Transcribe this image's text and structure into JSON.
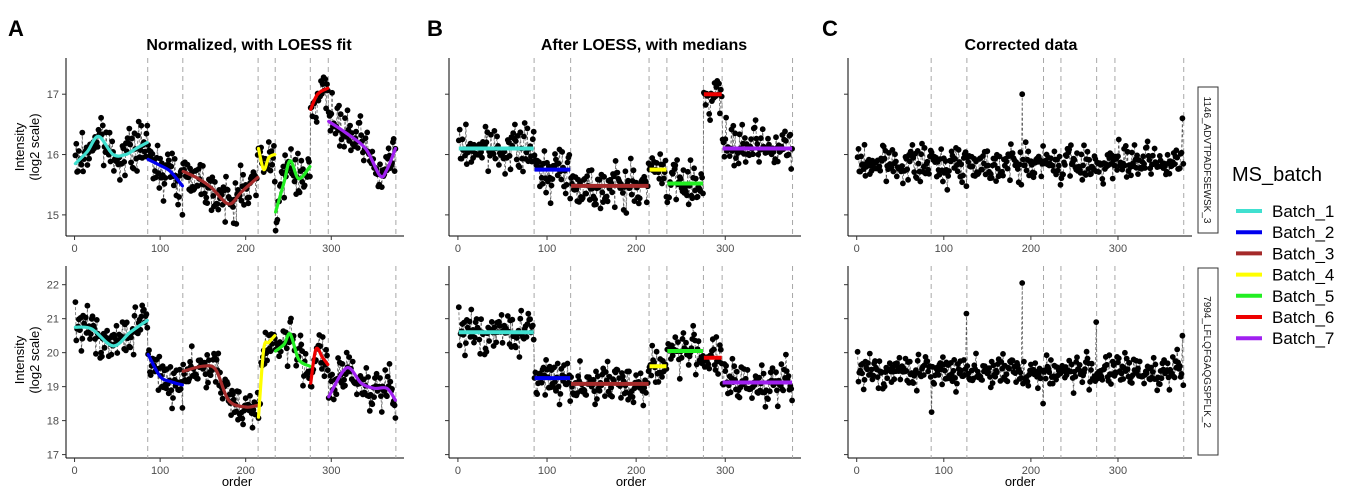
{
  "panel_letters": [
    "A",
    "B",
    "C"
  ],
  "panel_titles": [
    "Normalized, with LOESS fit",
    "After LOESS, with medians",
    "Corrected data"
  ],
  "row_strips": [
    "1146_ADVTPADFSEWSK_3",
    "7994_LFLQFGAQGSPFLK_2"
  ],
  "legend": {
    "title": "MS_batch",
    "items": [
      {
        "label": "Batch_1",
        "color": "#40E0D0"
      },
      {
        "label": "Batch_2",
        "color": "#0000EE"
      },
      {
        "label": "Batch_3",
        "color": "#A52A2A"
      },
      {
        "label": "Batch_4",
        "color": "#FFFF00"
      },
      {
        "label": "Batch_5",
        "color": "#22EE22"
      },
      {
        "label": "Batch_6",
        "color": "#EE0000"
      },
      {
        "label": "Batch_7",
        "color": "#A020F0"
      }
    ]
  },
  "chart_data": {
    "type": "scatter",
    "xlabel": "order",
    "ylabel_lines": [
      "Intensity",
      "(log2 scale)"
    ],
    "xlim": [
      -10,
      385
    ],
    "x_ticks": [
      0,
      100,
      200,
      300
    ],
    "batch_boundaries": [
      85,
      126,
      214,
      234,
      275,
      296,
      375
    ],
    "batches": [
      {
        "name": "Batch_1",
        "start": 1,
        "end": 85
      },
      {
        "name": "Batch_2",
        "start": 86,
        "end": 126
      },
      {
        "name": "Batch_3",
        "start": 127,
        "end": 214
      },
      {
        "name": "Batch_4",
        "start": 215,
        "end": 234
      },
      {
        "name": "Batch_5",
        "start": 235,
        "end": 275
      },
      {
        "name": "Batch_6",
        "start": 276,
        "end": 296
      },
      {
        "name": "Batch_7",
        "start": 297,
        "end": 375
      }
    ],
    "rows": [
      {
        "peptide": "1146_ADVTPADFSEWSK_3",
        "ylim": [
          14.65,
          17.6
        ],
        "y_ticks": [
          15,
          16,
          17
        ],
        "noise_sd": 0.26,
        "normalized_trend": {
          "Batch_1": [
            [
              1,
              15.85
            ],
            [
              15,
              16.05
            ],
            [
              28,
              16.3
            ],
            [
              45,
              16.0
            ],
            [
              60,
              16.0
            ],
            [
              72,
              16.1
            ],
            [
              85,
              16.2
            ]
          ],
          "Batch_2": [
            [
              86,
              15.92
            ],
            [
              100,
              15.82
            ],
            [
              112,
              15.72
            ],
            [
              126,
              15.48
            ]
          ],
          "Batch_3": [
            [
              127,
              15.72
            ],
            [
              145,
              15.6
            ],
            [
              160,
              15.45
            ],
            [
              180,
              15.18
            ],
            [
              195,
              15.38
            ],
            [
              214,
              15.62
            ]
          ],
          "Batch_4": [
            [
              215,
              16.1
            ],
            [
              221,
              15.75
            ],
            [
              227,
              15.95
            ],
            [
              234,
              16.0
            ]
          ],
          "Batch_5": [
            [
              235,
              15.05
            ],
            [
              245,
              15.55
            ],
            [
              252,
              15.9
            ],
            [
              262,
              15.6
            ],
            [
              275,
              15.8
            ]
          ],
          "Batch_6": [
            [
              276,
              16.75
            ],
            [
              284,
              17.0
            ],
            [
              296,
              17.1
            ]
          ],
          "Batch_7": [
            [
              297,
              16.55
            ],
            [
              318,
              16.35
            ],
            [
              340,
              16.1
            ],
            [
              357,
              15.65
            ],
            [
              365,
              15.75
            ],
            [
              375,
              16.1
            ]
          ]
        },
        "medians": {
          "Batch_1": 16.1,
          "Batch_2": 15.75,
          "Batch_3": 15.48,
          "Batch_4": 15.75,
          "Batch_5": 15.52,
          "Batch_6": 17.0,
          "Batch_7": 16.1
        },
        "corrected_center": 15.85,
        "corrected_outliers": [
          [
            190,
            17.0
          ],
          [
            374,
            16.6
          ],
          [
            30,
            16.15
          ]
        ]
      },
      {
        "peptide": "7994_LFLQFGAQGSPFLK_2",
        "ylim": [
          16.9,
          22.55
        ],
        "y_ticks": [
          17,
          18,
          19,
          20,
          21,
          22
        ],
        "noise_sd": 0.42,
        "normalized_trend": {
          "Batch_1": [
            [
              1,
              20.75
            ],
            [
              20,
              20.7
            ],
            [
              45,
              20.2
            ],
            [
              65,
              20.6
            ],
            [
              85,
              20.95
            ]
          ],
          "Batch_2": [
            [
              86,
              19.95
            ],
            [
              100,
              19.3
            ],
            [
              112,
              19.15
            ],
            [
              126,
              19.05
            ]
          ],
          "Batch_3": [
            [
              127,
              19.45
            ],
            [
              150,
              19.6
            ],
            [
              165,
              19.5
            ],
            [
              180,
              18.6
            ],
            [
              200,
              18.4
            ],
            [
              214,
              18.45
            ]
          ],
          "Batch_4": [
            [
              215,
              18.1
            ],
            [
              221,
              20.1
            ],
            [
              227,
              20.3
            ],
            [
              234,
              20.5
            ]
          ],
          "Batch_5": [
            [
              235,
              20.05
            ],
            [
              245,
              20.25
            ],
            [
              252,
              20.55
            ],
            [
              262,
              19.8
            ],
            [
              275,
              19.6
            ]
          ],
          "Batch_6": [
            [
              276,
              19.1
            ],
            [
              282,
              20.1
            ],
            [
              290,
              19.85
            ],
            [
              296,
              19.65
            ]
          ],
          "Batch_7": [
            [
              297,
              18.7
            ],
            [
              318,
              19.55
            ],
            [
              335,
              19.1
            ],
            [
              350,
              18.95
            ],
            [
              365,
              18.95
            ],
            [
              375,
              18.6
            ]
          ]
        },
        "medians": {
          "Batch_1": 20.6,
          "Batch_2": 19.25,
          "Batch_3": 19.08,
          "Batch_4": 19.6,
          "Batch_5": 20.05,
          "Batch_6": 19.85,
          "Batch_7": 19.12
        },
        "corrected_center": 19.45,
        "corrected_outliers": [
          [
            190,
            22.05
          ],
          [
            126,
            21.15
          ],
          [
            214,
            20.6
          ],
          [
            275,
            20.9
          ],
          [
            374,
            20.5
          ],
          [
            86,
            18.25
          ],
          [
            214,
            18.5
          ]
        ]
      }
    ]
  }
}
